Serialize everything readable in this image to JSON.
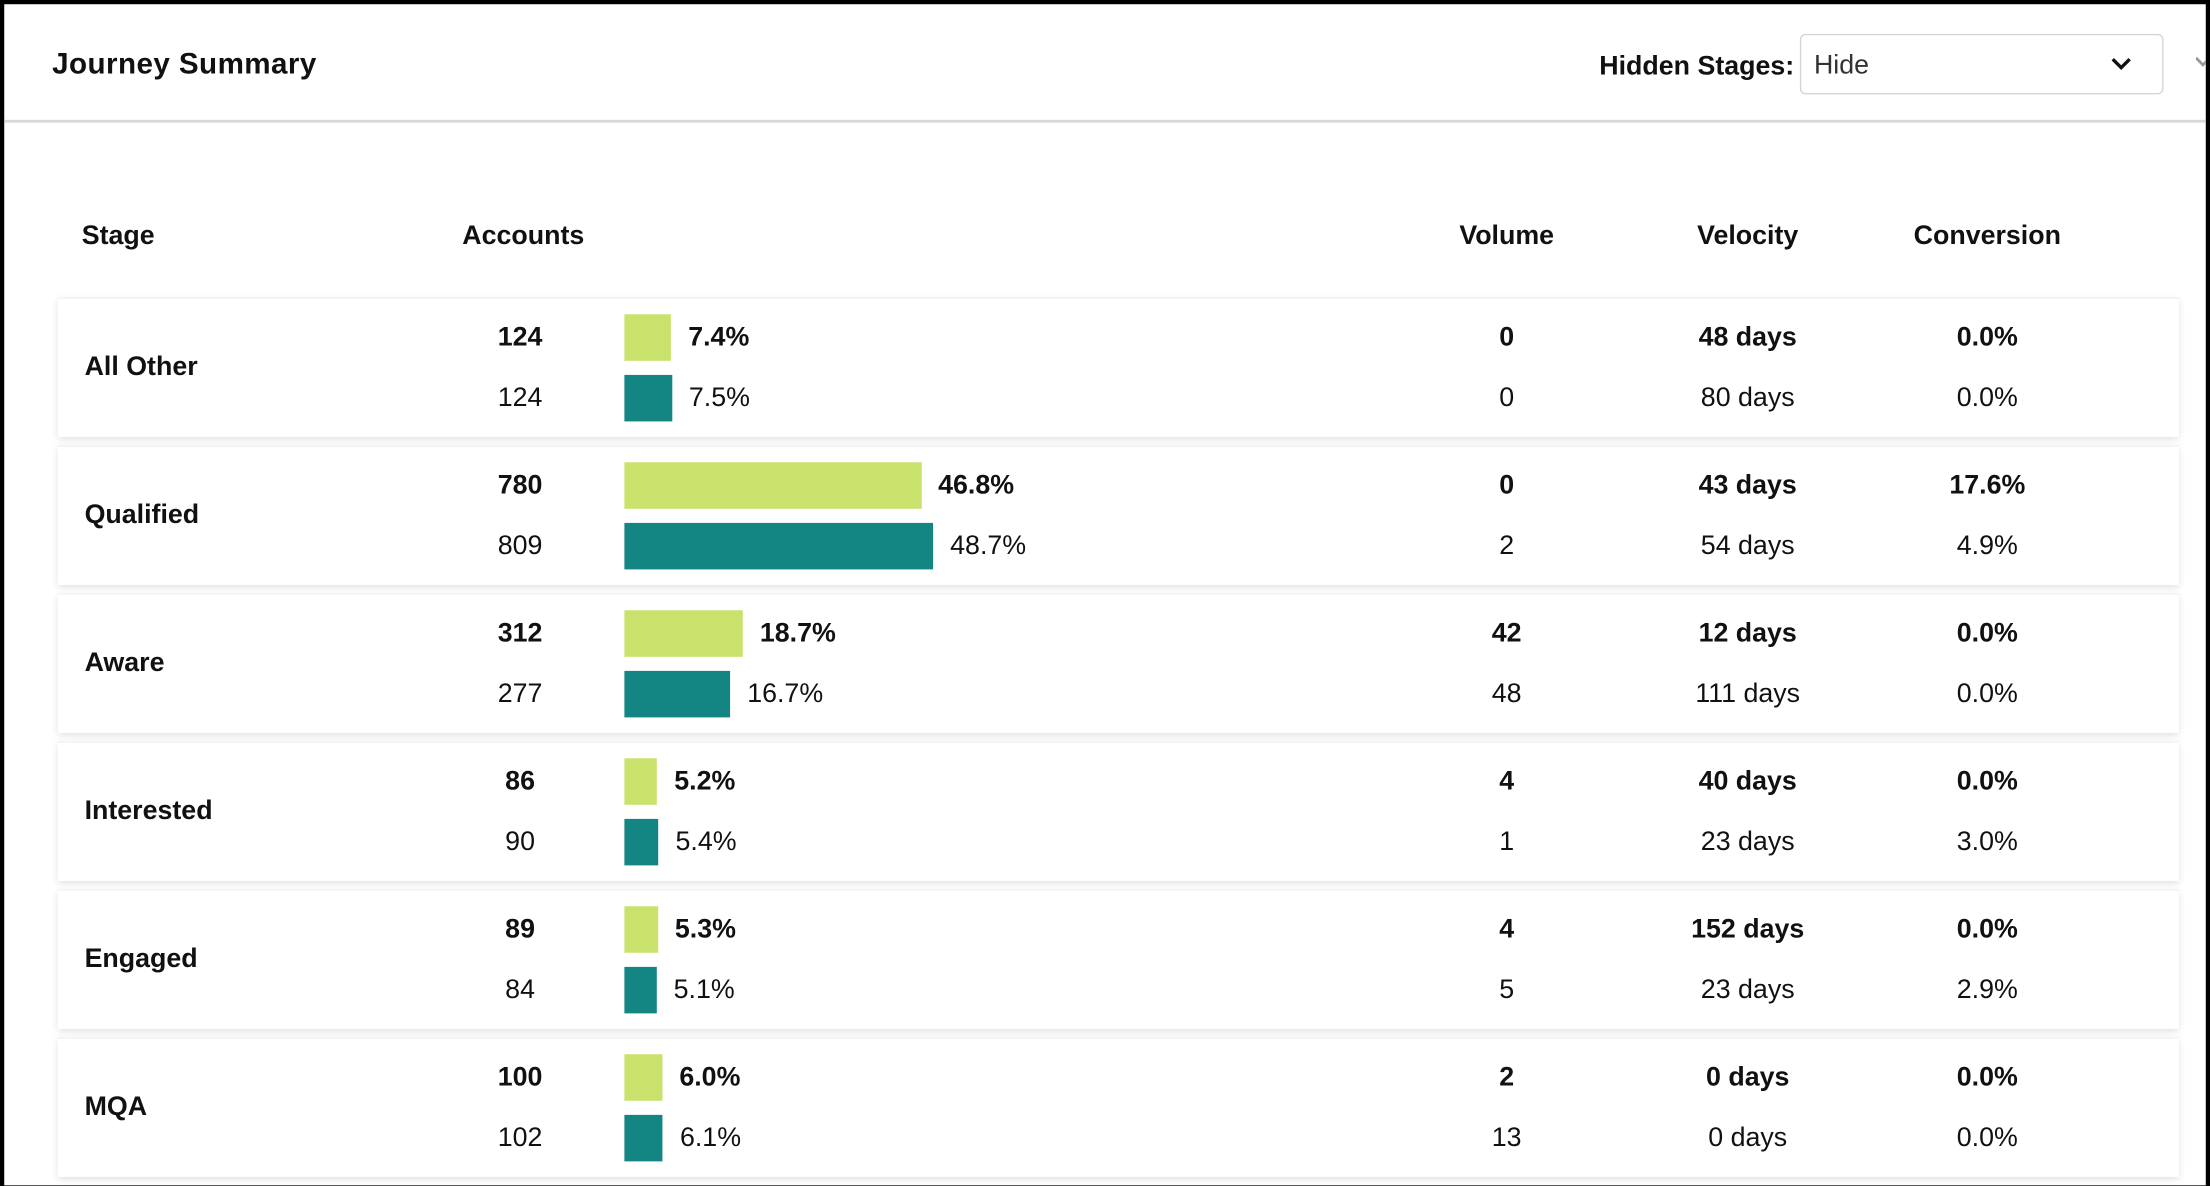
{
  "header": {
    "title": "Journey Summary",
    "hidden_stages_label": "Hidden Stages:",
    "hidden_stages_value": "Hide"
  },
  "columns": {
    "stage": "Stage",
    "accounts": "Accounts",
    "volume": "Volume",
    "velocity": "Velocity",
    "conversion": "Conversion"
  },
  "colors": {
    "current": "#c8e26c",
    "previous": "#138684"
  },
  "rows": [
    {
      "stage": "All Other",
      "current": {
        "accounts": "124",
        "pct": 7.4,
        "pct_label": "7.4%",
        "volume": "0",
        "velocity": "48 days",
        "conversion": "0.0%"
      },
      "previous": {
        "accounts": "124",
        "pct": 7.5,
        "pct_label": "7.5%",
        "volume": "0",
        "velocity": "80 days",
        "conversion": "0.0%"
      }
    },
    {
      "stage": "Qualified",
      "current": {
        "accounts": "780",
        "pct": 46.8,
        "pct_label": "46.8%",
        "volume": "0",
        "velocity": "43 days",
        "conversion": "17.6%"
      },
      "previous": {
        "accounts": "809",
        "pct": 48.7,
        "pct_label": "48.7%",
        "volume": "2",
        "velocity": "54 days",
        "conversion": "4.9%"
      }
    },
    {
      "stage": "Aware",
      "current": {
        "accounts": "312",
        "pct": 18.7,
        "pct_label": "18.7%",
        "volume": "42",
        "velocity": "12 days",
        "conversion": "0.0%"
      },
      "previous": {
        "accounts": "277",
        "pct": 16.7,
        "pct_label": "16.7%",
        "volume": "48",
        "velocity": "111 days",
        "conversion": "0.0%"
      }
    },
    {
      "stage": "Interested",
      "current": {
        "accounts": "86",
        "pct": 5.2,
        "pct_label": "5.2%",
        "volume": "4",
        "velocity": "40 days",
        "conversion": "0.0%"
      },
      "previous": {
        "accounts": "90",
        "pct": 5.4,
        "pct_label": "5.4%",
        "volume": "1",
        "velocity": "23 days",
        "conversion": "3.0%"
      }
    },
    {
      "stage": "Engaged",
      "current": {
        "accounts": "89",
        "pct": 5.3,
        "pct_label": "5.3%",
        "volume": "4",
        "velocity": "152 days",
        "conversion": "0.0%"
      },
      "previous": {
        "accounts": "84",
        "pct": 5.1,
        "pct_label": "5.1%",
        "volume": "5",
        "velocity": "23 days",
        "conversion": "2.9%"
      }
    },
    {
      "stage": "MQA",
      "current": {
        "accounts": "100",
        "pct": 6.0,
        "pct_label": "6.0%",
        "volume": "2",
        "velocity": "0 days",
        "conversion": "0.0%"
      },
      "previous": {
        "accounts": "102",
        "pct": 6.1,
        "pct_label": "6.1%",
        "volume": "13",
        "velocity": "0 days",
        "conversion": "0.0%"
      }
    }
  ]
}
